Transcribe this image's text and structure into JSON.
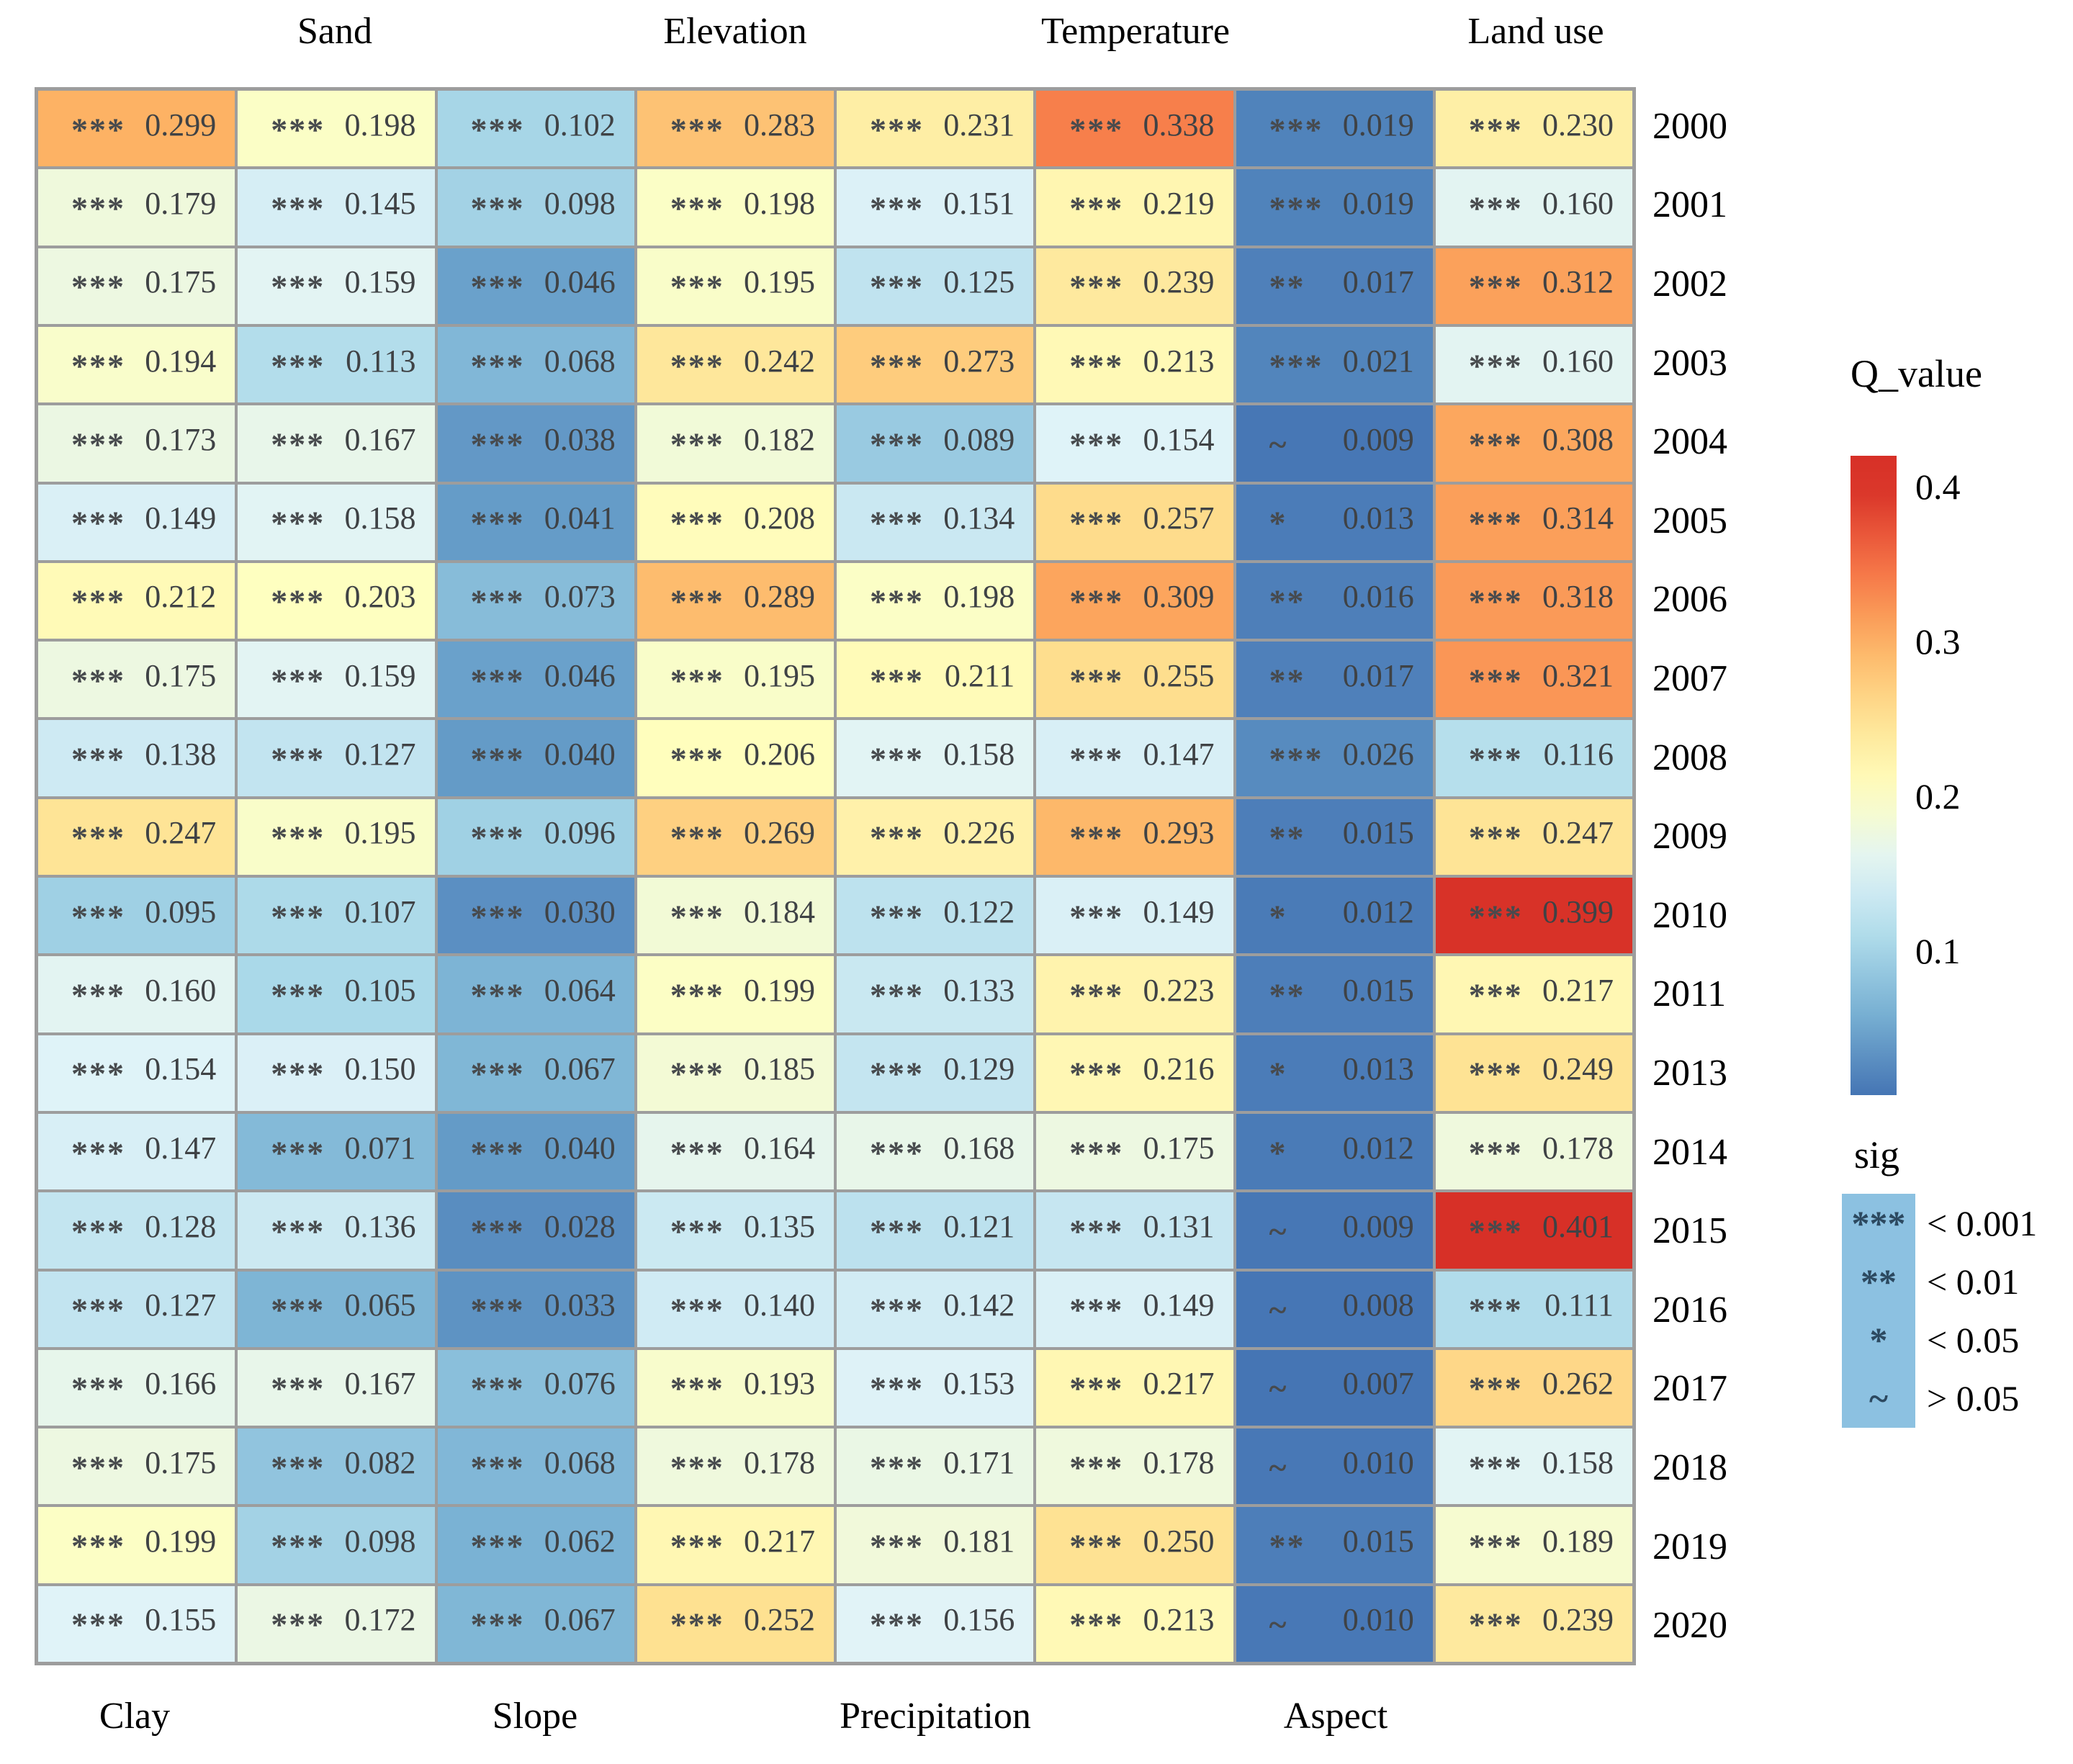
{
  "chart_data": {
    "type": "heatmap",
    "top_axis_labels": [
      "Sand",
      "Elevation",
      "Temperature",
      "Land use"
    ],
    "bottom_axis_labels": [
      "Clay",
      "Slope",
      "Precipitation",
      "Aspect"
    ],
    "columns": [
      "Clay",
      "Sand",
      "Slope",
      "Elevation",
      "Precipitation",
      "Temperature",
      "Aspect",
      "Land use"
    ],
    "rows": [
      {
        "year": "2000",
        "cells": [
          [
            "***",
            0.299
          ],
          [
            "***",
            0.198
          ],
          [
            "***",
            0.102
          ],
          [
            "***",
            0.283
          ],
          [
            "***",
            0.231
          ],
          [
            "***",
            0.338
          ],
          [
            "***",
            0.019
          ],
          [
            "***",
            0.23
          ]
        ]
      },
      {
        "year": "2001",
        "cells": [
          [
            "***",
            0.179
          ],
          [
            "***",
            0.145
          ],
          [
            "***",
            0.098
          ],
          [
            "***",
            0.198
          ],
          [
            "***",
            0.151
          ],
          [
            "***",
            0.219
          ],
          [
            "***",
            0.019
          ],
          [
            "***",
            0.16
          ]
        ]
      },
      {
        "year": "2002",
        "cells": [
          [
            "***",
            0.175
          ],
          [
            "***",
            0.159
          ],
          [
            "***",
            0.046
          ],
          [
            "***",
            0.195
          ],
          [
            "***",
            0.125
          ],
          [
            "***",
            0.239
          ],
          [
            "**",
            0.017
          ],
          [
            "***",
            0.312
          ]
        ]
      },
      {
        "year": "2003",
        "cells": [
          [
            "***",
            0.194
          ],
          [
            "***",
            0.113
          ],
          [
            "***",
            0.068
          ],
          [
            "***",
            0.242
          ],
          [
            "***",
            0.273
          ],
          [
            "***",
            0.213
          ],
          [
            "***",
            0.021
          ],
          [
            "***",
            0.16
          ]
        ]
      },
      {
        "year": "2004",
        "cells": [
          [
            "***",
            0.173
          ],
          [
            "***",
            0.167
          ],
          [
            "***",
            0.038
          ],
          [
            "***",
            0.182
          ],
          [
            "***",
            0.089
          ],
          [
            "***",
            0.154
          ],
          [
            "~",
            0.009
          ],
          [
            "***",
            0.308
          ]
        ]
      },
      {
        "year": "2005",
        "cells": [
          [
            "***",
            0.149
          ],
          [
            "***",
            0.158
          ],
          [
            "***",
            0.041
          ],
          [
            "***",
            0.208
          ],
          [
            "***",
            0.134
          ],
          [
            "***",
            0.257
          ],
          [
            "*",
            0.013
          ],
          [
            "***",
            0.314
          ]
        ]
      },
      {
        "year": "2006",
        "cells": [
          [
            "***",
            0.212
          ],
          [
            "***",
            0.203
          ],
          [
            "***",
            0.073
          ],
          [
            "***",
            0.289
          ],
          [
            "***",
            0.198
          ],
          [
            "***",
            0.309
          ],
          [
            "**",
            0.016
          ],
          [
            "***",
            0.318
          ]
        ]
      },
      {
        "year": "2007",
        "cells": [
          [
            "***",
            0.175
          ],
          [
            "***",
            0.159
          ],
          [
            "***",
            0.046
          ],
          [
            "***",
            0.195
          ],
          [
            "***",
            0.211
          ],
          [
            "***",
            0.255
          ],
          [
            "**",
            0.017
          ],
          [
            "***",
            0.321
          ]
        ]
      },
      {
        "year": "2008",
        "cells": [
          [
            "***",
            0.138
          ],
          [
            "***",
            0.127
          ],
          [
            "***",
            0.04
          ],
          [
            "***",
            0.206
          ],
          [
            "***",
            0.158
          ],
          [
            "***",
            0.147
          ],
          [
            "***",
            0.026
          ],
          [
            "***",
            0.116
          ]
        ]
      },
      {
        "year": "2009",
        "cells": [
          [
            "***",
            0.247
          ],
          [
            "***",
            0.195
          ],
          [
            "***",
            0.096
          ],
          [
            "***",
            0.269
          ],
          [
            "***",
            0.226
          ],
          [
            "***",
            0.293
          ],
          [
            "**",
            0.015
          ],
          [
            "***",
            0.247
          ]
        ]
      },
      {
        "year": "2010",
        "cells": [
          [
            "***",
            0.095
          ],
          [
            "***",
            0.107
          ],
          [
            "***",
            0.03
          ],
          [
            "***",
            0.184
          ],
          [
            "***",
            0.122
          ],
          [
            "***",
            0.149
          ],
          [
            "*",
            0.012
          ],
          [
            "***",
            0.399
          ]
        ]
      },
      {
        "year": "2011",
        "cells": [
          [
            "***",
            0.16
          ],
          [
            "***",
            0.105
          ],
          [
            "***",
            0.064
          ],
          [
            "***",
            0.199
          ],
          [
            "***",
            0.133
          ],
          [
            "***",
            0.223
          ],
          [
            "**",
            0.015
          ],
          [
            "***",
            0.217
          ]
        ]
      },
      {
        "year": "2013",
        "cells": [
          [
            "***",
            0.154
          ],
          [
            "***",
            0.15
          ],
          [
            "***",
            0.067
          ],
          [
            "***",
            0.185
          ],
          [
            "***",
            0.129
          ],
          [
            "***",
            0.216
          ],
          [
            "*",
            0.013
          ],
          [
            "***",
            0.249
          ]
        ]
      },
      {
        "year": "2014",
        "cells": [
          [
            "***",
            0.147
          ],
          [
            "***",
            0.071
          ],
          [
            "***",
            0.04
          ],
          [
            "***",
            0.164
          ],
          [
            "***",
            0.168
          ],
          [
            "***",
            0.175
          ],
          [
            "*",
            0.012
          ],
          [
            "***",
            0.178
          ]
        ]
      },
      {
        "year": "2015",
        "cells": [
          [
            "***",
            0.128
          ],
          [
            "***",
            0.136
          ],
          [
            "***",
            0.028
          ],
          [
            "***",
            0.135
          ],
          [
            "***",
            0.121
          ],
          [
            "***",
            0.131
          ],
          [
            "~",
            0.009
          ],
          [
            "***",
            0.401
          ]
        ]
      },
      {
        "year": "2016",
        "cells": [
          [
            "***",
            0.127
          ],
          [
            "***",
            0.065
          ],
          [
            "***",
            0.033
          ],
          [
            "***",
            0.14
          ],
          [
            "***",
            0.142
          ],
          [
            "***",
            0.149
          ],
          [
            "~",
            0.008
          ],
          [
            "***",
            0.111
          ]
        ]
      },
      {
        "year": "2017",
        "cells": [
          [
            "***",
            0.166
          ],
          [
            "***",
            0.167
          ],
          [
            "***",
            0.076
          ],
          [
            "***",
            0.193
          ],
          [
            "***",
            0.153
          ],
          [
            "***",
            0.217
          ],
          [
            "~",
            0.007
          ],
          [
            "***",
            0.262
          ]
        ]
      },
      {
        "year": "2018",
        "cells": [
          [
            "***",
            0.175
          ],
          [
            "***",
            0.082
          ],
          [
            "***",
            0.068
          ],
          [
            "***",
            0.178
          ],
          [
            "***",
            0.171
          ],
          [
            "***",
            0.178
          ],
          [
            "~",
            0.01
          ],
          [
            "***",
            0.158
          ]
        ]
      },
      {
        "year": "2019",
        "cells": [
          [
            "***",
            0.199
          ],
          [
            "***",
            0.098
          ],
          [
            "***",
            0.062
          ],
          [
            "***",
            0.217
          ],
          [
            "***",
            0.181
          ],
          [
            "***",
            0.25
          ],
          [
            "**",
            0.015
          ],
          [
            "***",
            0.189
          ]
        ]
      },
      {
        "year": "2020",
        "cells": [
          [
            "***",
            0.155
          ],
          [
            "***",
            0.172
          ],
          [
            "***",
            0.067
          ],
          [
            "***",
            0.252
          ],
          [
            "***",
            0.156
          ],
          [
            "***",
            0.213
          ],
          [
            "~",
            0.01
          ],
          [
            "***",
            0.239
          ]
        ]
      }
    ],
    "color_scale": {
      "palette_blue_to_red": [
        "#4575b4",
        "#74add1",
        "#abd9e9",
        "#e0f3f8",
        "#ffffbf",
        "#fee090",
        "#fdae61",
        "#f46d43",
        "#d73027"
      ],
      "domain": [
        0.007,
        0.401
      ],
      "colorbar_value_range": [
        0.007,
        0.42
      ]
    },
    "legend_qvalue": {
      "title": "Q_value",
      "tick_labels": [
        "0.4",
        "0.3",
        "0.2",
        "0.1"
      ],
      "tick_values": [
        0.4,
        0.3,
        0.2,
        0.1
      ]
    },
    "legend_sig": {
      "title": "sig",
      "swatch_color": "#8cc1e1",
      "entries": [
        {
          "marker": "***",
          "label": "< 0.001"
        },
        {
          "marker": "**",
          "label": "< 0.01"
        },
        {
          "marker": "*",
          "label": "< 0.05"
        },
        {
          "marker": "~",
          "label": "> 0.05"
        }
      ]
    }
  }
}
